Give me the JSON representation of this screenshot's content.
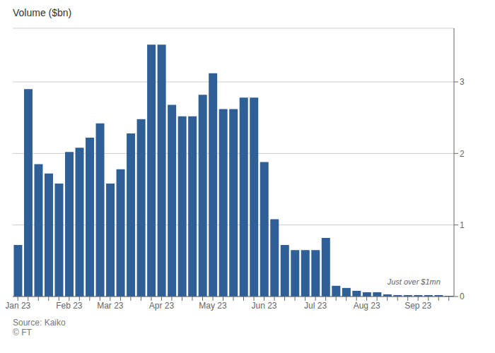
{
  "chart_data": {
    "type": "bar",
    "ylabel": "Volume ($bn)",
    "annotation": "Just over $1mn",
    "source": [
      "Source: Kaiko",
      "© FT"
    ],
    "categories": [
      "Jan 23",
      null,
      null,
      null,
      null,
      "Feb 23",
      null,
      null,
      null,
      "Mar 23",
      null,
      null,
      null,
      null,
      "Apr 23",
      null,
      null,
      null,
      null,
      "May 23",
      null,
      null,
      null,
      null,
      "Jun 23",
      null,
      null,
      null,
      null,
      "Jul 23",
      null,
      null,
      null,
      null,
      "Aug 23",
      null,
      null,
      null,
      null,
      "Sep 23",
      null,
      null,
      null
    ],
    "values": [
      0.72,
      2.9,
      1.85,
      1.72,
      1.58,
      2.02,
      2.08,
      2.22,
      2.42,
      1.58,
      1.78,
      2.28,
      2.48,
      3.52,
      3.52,
      2.68,
      2.52,
      2.52,
      2.82,
      3.12,
      2.62,
      2.62,
      2.78,
      2.78,
      1.88,
      1.08,
      0.72,
      0.65,
      0.65,
      0.65,
      0.82,
      0.15,
      0.12,
      0.08,
      0.06,
      0.06,
      0.03,
      0.02,
      0.02,
      0.02,
      0.02,
      0.02,
      0.01
    ],
    "color": "#2e6097",
    "ylim": [
      0,
      3.75
    ],
    "yticks": [
      0,
      1,
      2,
      3
    ],
    "grid": true
  }
}
